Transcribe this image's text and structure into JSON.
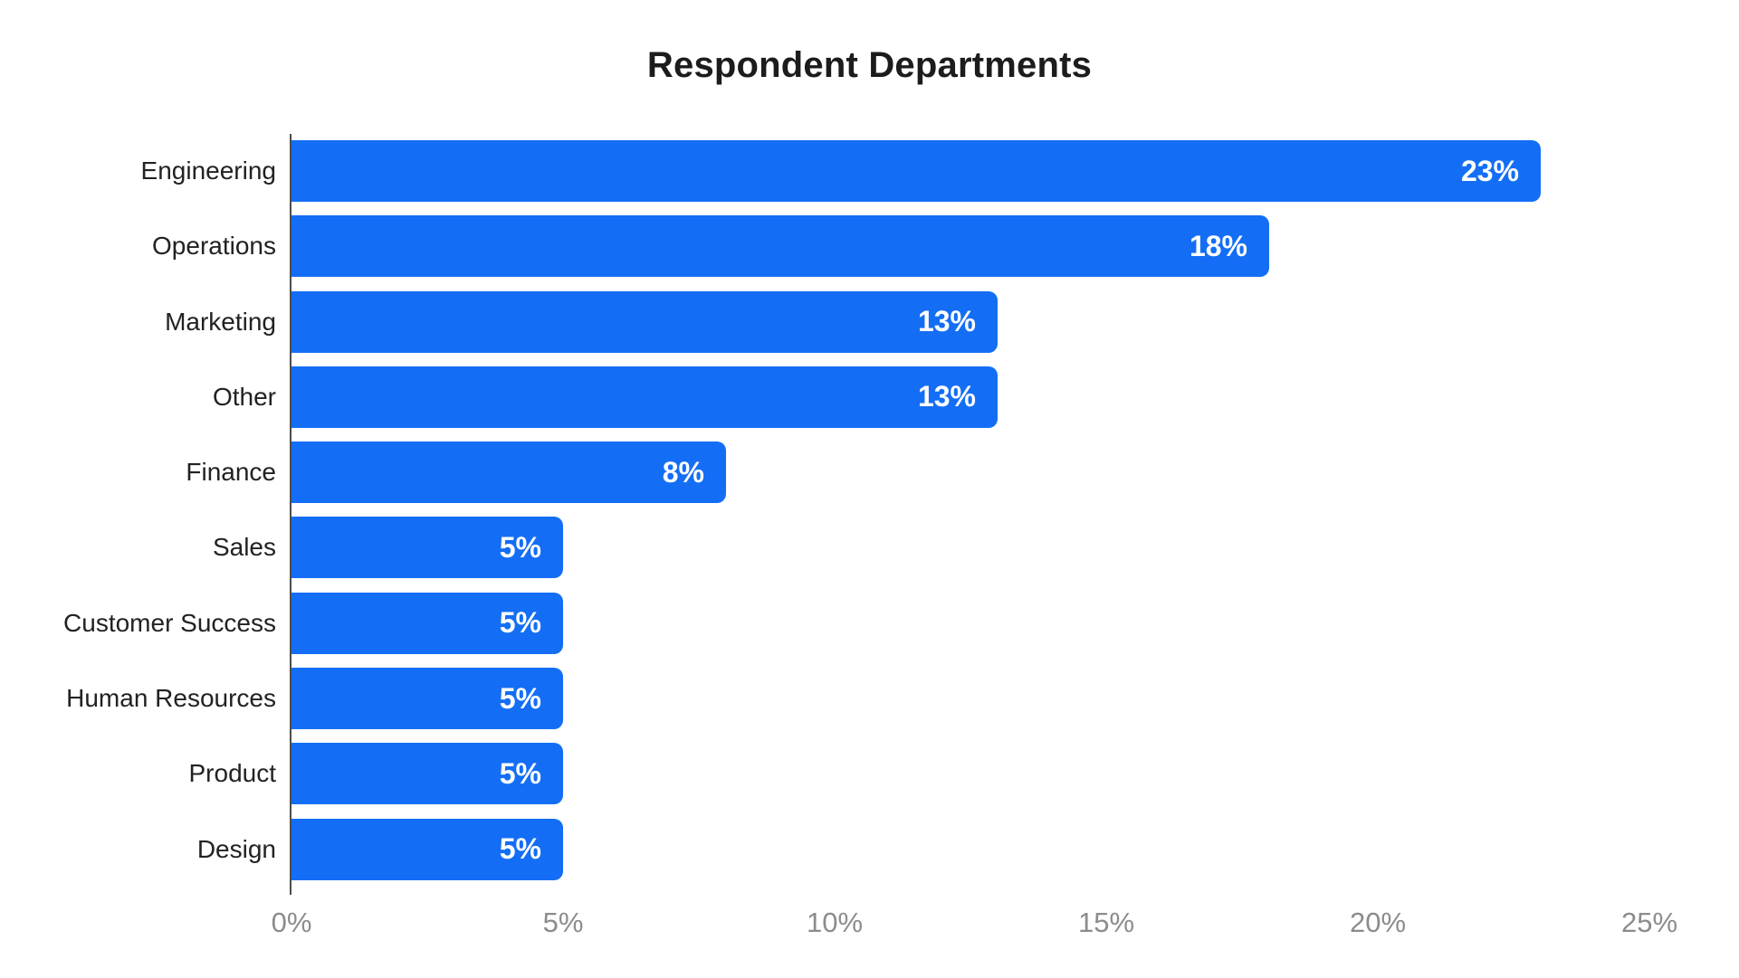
{
  "chart_data": {
    "type": "bar",
    "orientation": "horizontal",
    "title": "Respondent Departments",
    "categories": [
      "Engineering",
      "Operations",
      "Marketing",
      "Other",
      "Finance",
      "Sales",
      "Customer Success",
      "Human Resources",
      "Product",
      "Design"
    ],
    "values": [
      23,
      18,
      13,
      13,
      8,
      5,
      5,
      5,
      5,
      5
    ],
    "value_labels": [
      "23%",
      "18%",
      "13%",
      "13%",
      "8%",
      "5%",
      "5%",
      "5%",
      "5%",
      "5%"
    ],
    "x_tick_labels": [
      "0%",
      "5%",
      "10%",
      "15%",
      "20%",
      "25%"
    ],
    "x_tick_values": [
      0,
      5,
      10,
      15,
      20,
      25
    ],
    "xlim": [
      0,
      25
    ],
    "xlabel": "",
    "ylabel": "",
    "grid": false,
    "legend": false,
    "colors": {
      "bar": "#146ef5",
      "value_label": "#ffffff",
      "category_label": "#222222",
      "tick_label": "#8c8c8c",
      "axis_line": "#4d4d4d",
      "title": "#1c1c1c",
      "background": "#ffffff"
    }
  }
}
